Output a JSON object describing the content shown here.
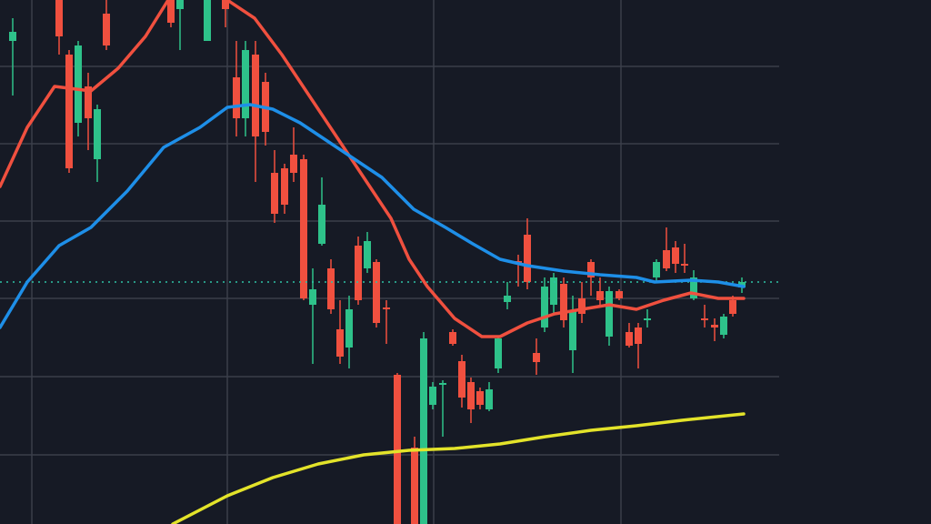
{
  "chart_data": {
    "type": "candlestick",
    "xlim": [
      0,
      1024
    ],
    "ylim": [
      0,
      576
    ],
    "xticks": [
      35,
      250,
      477,
      683
    ],
    "yticks": [
      503,
      418,
      333,
      248,
      162,
      76
    ],
    "grid": true,
    "up_color": "#2ec28a",
    "down_color": "#f0503f",
    "reference_line": {
      "value": 266,
      "color": "#2ec2a5"
    },
    "x": [
      14,
      65,
      76,
      86,
      97,
      107,
      117,
      188,
      198,
      228,
      248,
      260,
      270,
      281,
      292,
      302,
      313,
      323,
      334,
      344,
      354,
      364,
      374,
      384,
      394,
      404,
      414,
      425,
      437,
      456,
      466,
      476,
      487,
      498,
      508,
      518,
      528,
      538,
      548,
      558,
      570,
      580,
      590,
      599,
      609,
      620,
      630,
      640,
      650,
      660,
      670,
      681,
      692,
      702,
      712,
      722,
      733,
      743,
      753,
      763,
      775,
      786,
      796,
      806,
      816
    ],
    "open": [
      531,
      576,
      516,
      441,
      481,
      401,
      561,
      576,
      566,
      531,
      576,
      491,
      446,
      516,
      486,
      386,
      391,
      406,
      401,
      241,
      308,
      281,
      214,
      194,
      306,
      281,
      288,
      238,
      164,
      84,
      0,
      131,
      153,
      211,
      179,
      156,
      146,
      126,
      171,
      244,
      289,
      318,
      188,
      216,
      241,
      264,
      191,
      248,
      288,
      256,
      206,
      256,
      211,
      216,
      224,
      271,
      301,
      304,
      286,
      248,
      226,
      219,
      208,
      246,
      260
    ],
    "high": [
      556,
      576,
      521,
      531,
      496,
      461,
      576,
      576,
      576,
      576,
      576,
      531,
      531,
      531,
      496,
      411,
      396,
      436,
      406,
      281,
      381,
      291,
      246,
      251,
      316,
      321,
      291,
      246,
      166,
      96,
      211,
      156,
      158,
      214,
      186,
      161,
      150,
      156,
      206,
      266,
      296,
      336,
      204,
      271,
      276,
      271,
      251,
      266,
      291,
      271,
      261,
      258,
      221,
      221,
      236,
      291,
      326,
      311,
      308,
      279,
      241,
      226,
      231,
      251,
      271
    ],
    "low": [
      471,
      516,
      386,
      426,
      411,
      376,
      521,
      546,
      521,
      531,
      546,
      426,
      426,
      376,
      416,
      331,
      341,
      376,
      246,
      176,
      306,
      231,
      176,
      171,
      241,
      276,
      216,
      198,
      0,
      0,
      0,
      126,
      96,
      196,
      128,
      111,
      126,
      124,
      166,
      236,
      261,
      258,
      164,
      211,
      231,
      216,
      166,
      221,
      251,
      241,
      196,
      246,
      194,
      171,
      216,
      266,
      278,
      276,
      276,
      246,
      216,
      201,
      204,
      228,
      254
    ],
    "close": [
      541,
      536,
      391,
      526,
      446,
      456,
      526,
      551,
      576,
      576,
      566,
      446,
      521,
      426,
      431,
      341,
      351,
      386,
      248,
      258,
      351,
      236,
      184,
      236,
      246,
      311,
      221,
      236,
      0,
      0,
      204,
      151,
      155,
      198,
      139,
      126,
      131,
      148,
      204,
      251,
      286,
      266,
      178,
      261,
      271,
      224,
      234,
      231,
      271,
      246,
      256,
      248,
      196,
      198,
      226,
      288,
      281,
      286,
      284,
      271,
      224,
      216,
      228,
      231,
      266
    ],
    "series": [
      {
        "color": "#f0503f",
        "x": [
          0,
          30,
          60,
          100,
          130,
          160,
          185,
          215,
          250,
          280,
          310,
          330,
          350,
          380,
          410,
          430,
          450,
          470,
          500,
          530,
          550,
          580,
          610,
          640,
          670,
          700,
          730,
          760,
          790,
          818
        ],
        "values": [
          371,
          436,
          481,
          476,
          501,
          536,
          576,
          600,
          576,
          556,
          516,
          486,
          456,
          411,
          366,
          336,
          291,
          261,
          226,
          206,
          206,
          221,
          231,
          236,
          241,
          236,
          246,
          254,
          248,
          248
        ]
      },
      {
        "color": "#1e8fe8",
        "x": [
          0,
          30,
          65,
          100,
          140,
          180,
          220,
          250,
          275,
          300,
          330,
          360,
          390,
          420,
          455,
          490,
          520,
          550,
          580,
          620,
          660,
          700,
          720,
          760,
          790,
          818
        ],
        "values": [
          216,
          266,
          306,
          326,
          366,
          414,
          436,
          458,
          461,
          456,
          441,
          421,
          401,
          381,
          346,
          326,
          308,
          291,
          284,
          278,
          274,
          271,
          266,
          268,
          266,
          261
        ]
      },
      {
        "color": "#e3e32a",
        "x": [
          190,
          250,
          300,
          350,
          400,
          450,
          500,
          550,
          600,
          650,
          700,
          750,
          818
        ],
        "values": [
          0,
          31,
          51,
          66,
          76,
          81,
          83,
          88,
          96,
          103,
          108,
          114,
          121
        ]
      }
    ]
  }
}
